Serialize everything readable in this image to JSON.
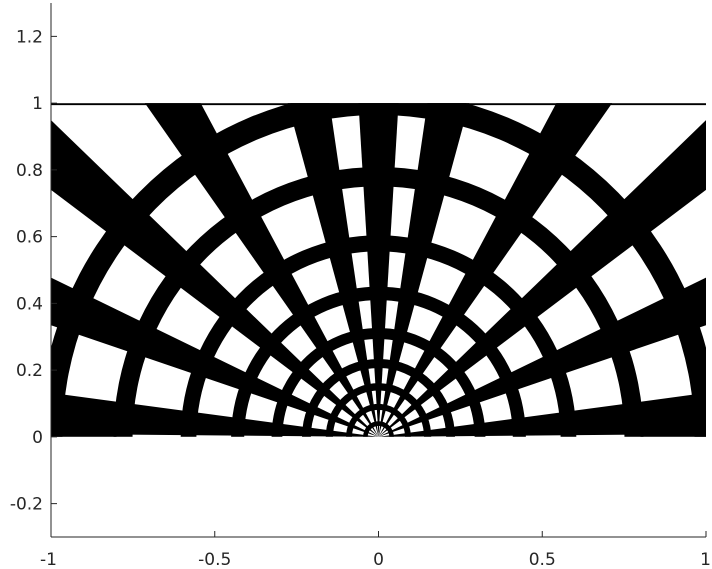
{
  "chart_data": {
    "type": "heatmap",
    "title": "",
    "xlabel": "",
    "ylabel": "",
    "xlim": [
      -1,
      1
    ],
    "ylim": [
      -0.3,
      1.3
    ],
    "x_ticks": [
      -1,
      -0.5,
      0,
      0.5,
      1
    ],
    "x_tick_labels": [
      "-1",
      "-0.5",
      "0",
      "0.5",
      "1"
    ],
    "y_ticks": [
      -0.2,
      0,
      0.2,
      0.4,
      0.6,
      0.8,
      1,
      1.2
    ],
    "y_tick_labels": [
      "-0.2",
      "0",
      "0.2",
      "0.4",
      "0.6",
      "0.8",
      "1",
      "1.2"
    ],
    "grid": false,
    "colors": {
      "solid": "#000000",
      "void": "#ffffff",
      "axis": "#262626"
    },
    "domain": {
      "x": [
        -1,
        1
      ],
      "y": [
        0,
        1
      ]
    },
    "structure": {
      "description": "black/white material distribution: radial spokes and concentric arcs centered at origin",
      "center": [
        0,
        0
      ],
      "arc_radii": [
        0.04,
        0.09,
        0.15,
        0.22,
        0.31,
        0.43,
        0.58,
        0.78,
        1.0
      ],
      "arc_thickness": [
        0.014,
        0.018,
        0.022,
        0.027,
        0.033,
        0.04,
        0.048,
        0.058,
        0.07
      ],
      "spoke_angles_deg": [
        4,
        22,
        40,
        58,
        78,
        90,
        102,
        122,
        140,
        158,
        176
      ],
      "spoke_half_width_deg": 3.5,
      "bottom_bar": {
        "y": [
          0,
          0.035
        ],
        "x_segments": [
          [
            -1,
            -0.8
          ],
          [
            0.8,
            1
          ]
        ]
      }
    }
  }
}
